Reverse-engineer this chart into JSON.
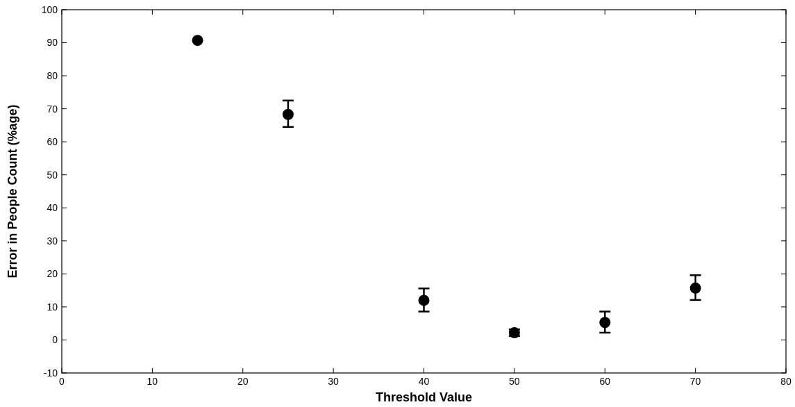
{
  "chart_data": {
    "type": "scatter",
    "xlabel": "Threshold Value",
    "ylabel": "Error in People Count (%age)",
    "x": [
      15,
      25,
      40,
      50,
      60,
      70
    ],
    "values": [
      90.7,
      68.3,
      12,
      2.2,
      5.3,
      15.7
    ],
    "errors": [
      null,
      [
        64.5,
        72.5
      ],
      [
        8.6,
        15.6
      ],
      [
        1.2,
        3.2
      ],
      [
        2.2,
        8.6
      ],
      [
        12.1,
        19.6
      ]
    ],
    "color": "#000000",
    "marker": "circle",
    "xlim": [
      0,
      80
    ],
    "xticks": [
      0,
      10,
      20,
      30,
      40,
      50,
      60,
      70,
      80
    ],
    "ylim": [
      -10,
      100
    ],
    "yticks": [
      -10,
      0,
      10,
      20,
      30,
      40,
      50,
      60,
      70,
      80,
      90,
      100
    ],
    "grid": false
  }
}
